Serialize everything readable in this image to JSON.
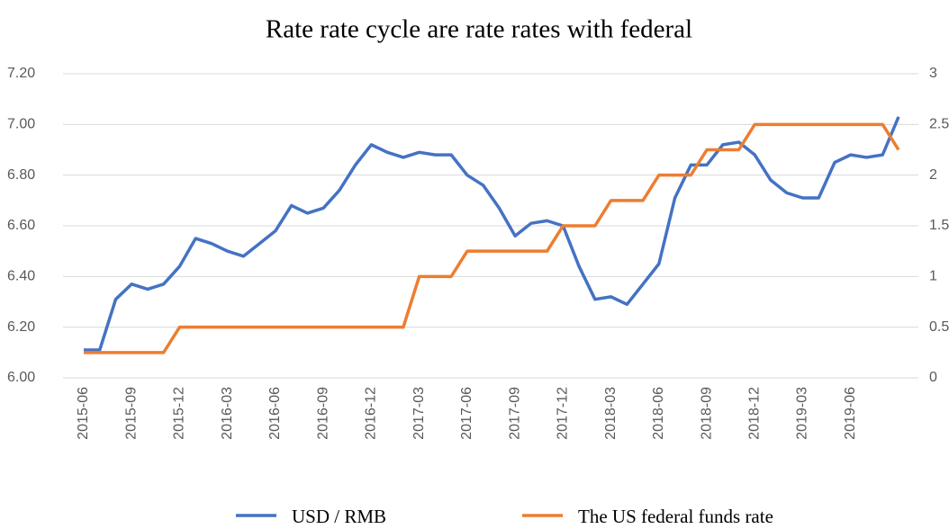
{
  "chart_data": {
    "type": "line",
    "title": "Rate rate cycle are rate rates with federal",
    "categories": [
      "2015-06",
      null,
      null,
      "2015-09",
      null,
      null,
      "2015-12",
      null,
      null,
      "2016-03",
      null,
      null,
      "2016-06",
      null,
      null,
      "2016-09",
      null,
      null,
      "2016-12",
      null,
      null,
      "2017-03",
      null,
      null,
      "2017-06",
      null,
      null,
      "2017-09",
      null,
      null,
      "2017-12",
      null,
      null,
      "2018-03",
      null,
      null,
      "2018-06",
      null,
      null,
      "2018-09",
      null,
      null,
      "2018-12",
      null,
      null,
      "2019-03",
      null,
      null,
      "2019-06",
      null,
      null,
      null
    ],
    "series": [
      {
        "name": "USD / RMB",
        "color": "#4472c4",
        "values": [
          6.11,
          6.11,
          6.31,
          6.37,
          6.35,
          6.37,
          6.44,
          6.55,
          6.53,
          6.5,
          6.48,
          6.53,
          6.58,
          6.68,
          6.65,
          6.67,
          6.74,
          6.84,
          6.92,
          6.89,
          6.87,
          6.89,
          6.88,
          6.88,
          6.8,
          6.76,
          6.67,
          6.56,
          6.61,
          6.62,
          6.6,
          6.44,
          6.31,
          6.32,
          6.29,
          6.37,
          6.45,
          6.71,
          6.84,
          6.84,
          6.92,
          6.93,
          6.88,
          6.78,
          6.73,
          6.71,
          6.71,
          6.85,
          6.88,
          6.87,
          6.88,
          7.03
        ]
      },
      {
        "name": "The US federal funds rate",
        "color": "#ed7d31",
        "axis": "y2",
        "values": [
          0.25,
          0.25,
          0.25,
          0.25,
          0.25,
          0.25,
          0.5,
          0.5,
          0.5,
          0.5,
          0.5,
          0.5,
          0.5,
          0.5,
          0.5,
          0.5,
          0.5,
          0.5,
          0.5,
          0.5,
          0.5,
          1.0,
          1.0,
          1.0,
          1.25,
          1.25,
          1.25,
          1.25,
          1.25,
          1.25,
          1.5,
          1.5,
          1.5,
          1.75,
          1.75,
          1.75,
          2.0,
          2.0,
          2.0,
          2.25,
          2.25,
          2.25,
          2.5,
          2.5,
          2.5,
          2.5,
          2.5,
          2.5,
          2.5,
          2.5,
          2.5,
          2.25
        ]
      }
    ],
    "ylim": [
      6.0,
      7.2
    ],
    "yticks": [
      {
        "value": 6.0,
        "label": "6.00"
      },
      {
        "value": 6.2,
        "label": "6.20"
      },
      {
        "value": 6.4,
        "label": "6.40"
      },
      {
        "value": 6.6,
        "label": "6.60"
      },
      {
        "value": 6.8,
        "label": "6.80"
      },
      {
        "value": 7.0,
        "label": "7.00"
      },
      {
        "value": 7.2,
        "label": "7.20"
      }
    ],
    "y2lim": [
      0,
      3
    ],
    "y2ticks": [
      0,
      0.5,
      1,
      1.5,
      2,
      2.5,
      3
    ],
    "grid": true,
    "legend": "bottom"
  }
}
